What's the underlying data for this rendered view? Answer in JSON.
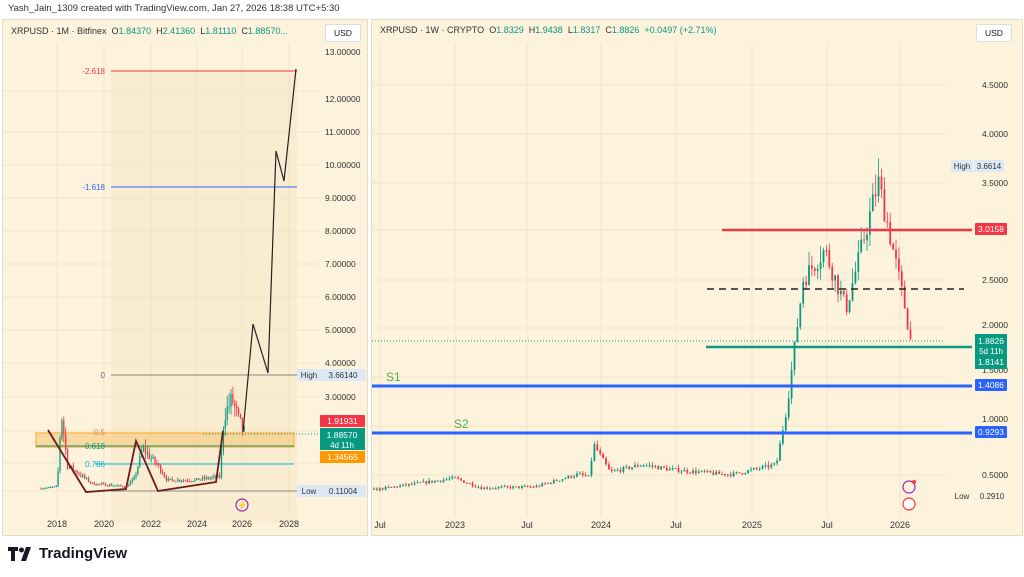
{
  "credit": "Yash_Jain_1309 created with TradingView.com, Jan 27, 2026 18:38 UTC+5:30",
  "left": {
    "symbol": "XRPUSD · 1M · Bitfinex",
    "o_label": "O",
    "o": "1.84370",
    "h_label": "H",
    "h": "2.41360",
    "l_label": "L",
    "l": "1.81110",
    "c_label": "C",
    "c": "1.88570...",
    "currency": "USD",
    "price_axis": [
      "13.00000",
      "12.00000",
      "11.00000",
      "10.00000",
      "9.00000",
      "8.00000",
      "7.00000",
      "6.00000",
      "5.00000",
      "4.00000",
      "3.00000"
    ],
    "time_axis": [
      "2018",
      "2020",
      "2022",
      "2024",
      "2026",
      "2028"
    ],
    "fib": {
      "n2618": "-2.618",
      "n1618": "-1.618",
      "zero": "0",
      "half": "0.5",
      "f618": "0.618",
      "f786": "0.786"
    },
    "high_label": "High",
    "high": "3.66140",
    "low_label": "Low",
    "low": "0.11004",
    "tags": {
      "red": "1.91931",
      "price": "1.88570",
      "countdown": "4d 11h",
      "orange": "1.34565"
    }
  },
  "right": {
    "symbol": "XRPUSD · 1W · CRYPTO",
    "o_label": "O",
    "o": "1.8329",
    "h_label": "H",
    "h": "1.9438",
    "l_label": "L",
    "l": "1.8317",
    "c_label": "C",
    "c": "1.8826",
    "change": "+0.0497 (+2.71%)",
    "currency": "USD",
    "price_axis": [
      "4.5000",
      "4.0000",
      "3.5000",
      "2.5000",
      "2.0000",
      "1.5000",
      "1.0000",
      "0.5000"
    ],
    "time_axis": [
      "Jul",
      "2023",
      "Jul",
      "2024",
      "Jul",
      "2025",
      "Jul",
      "2026"
    ],
    "high_label": "High",
    "high": "3.6614",
    "low_label": "Low",
    "low": "0.2910",
    "tags": {
      "resistance": "3.0158",
      "price": "1.8826",
      "countdown": "5d 11h",
      "support": "1.8141",
      "s1": "1.4086",
      "s2": "0.9293"
    },
    "s1_label": "S1",
    "s2_label": "S2"
  },
  "colors": {
    "up": "#089981",
    "down": "#f23645",
    "bg": "#fdf3dc",
    "blue": "#2962ff",
    "red": "#f23645",
    "orange": "#ff9800"
  },
  "footer": {
    "brand": "TradingView"
  }
}
